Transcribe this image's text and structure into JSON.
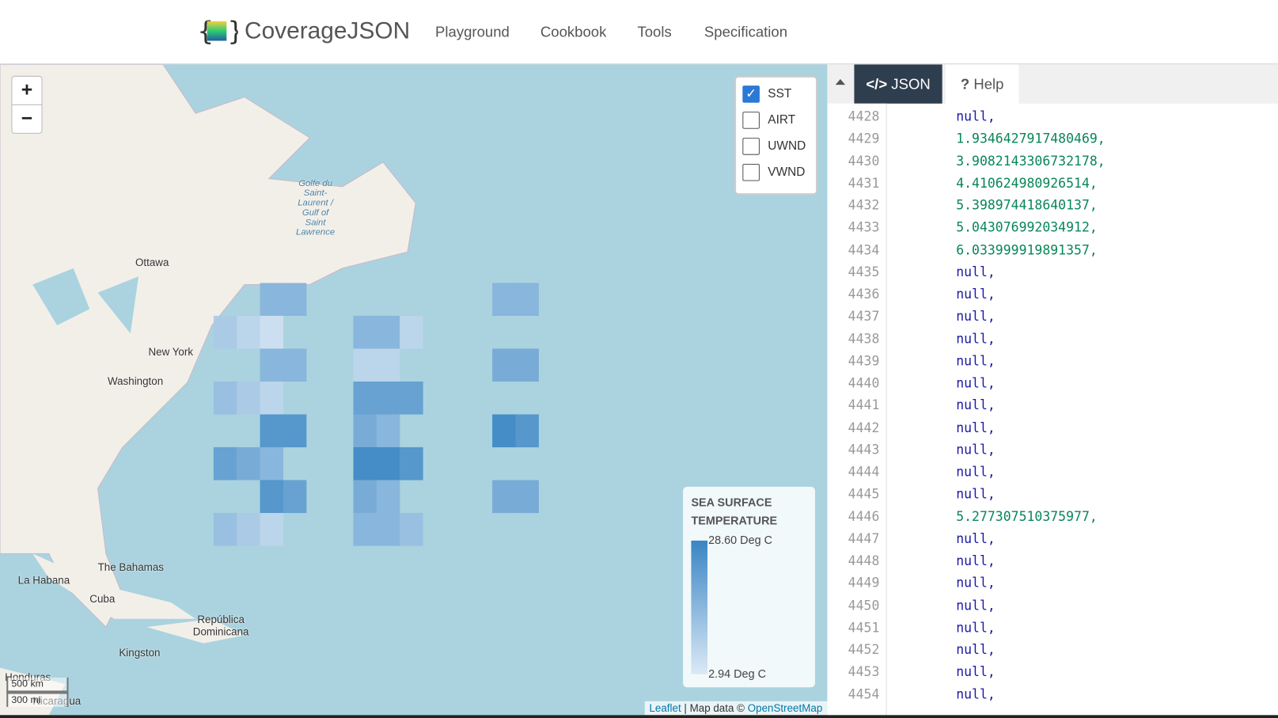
{
  "header": {
    "brand": "CoverageJSON",
    "nav": [
      "Playground",
      "Cookbook",
      "Tools",
      "Specification"
    ]
  },
  "map": {
    "zoom_in": "+",
    "zoom_out": "−",
    "layers": [
      {
        "label": "SST",
        "checked": true
      },
      {
        "label": "AIRT",
        "checked": false
      },
      {
        "label": "UWND",
        "checked": false
      },
      {
        "label": "VWND",
        "checked": false
      }
    ],
    "places": [
      "Ottawa",
      "New York",
      "Washington",
      "Golfe du Saint-Laurent / Gulf of Saint Lawrence",
      "The Bahamas",
      "La Habana",
      "Cuba",
      "República Dominicana",
      "Kingston",
      "Honduras",
      "Nicaragua"
    ],
    "legend": {
      "title": "SEA SURFACE TEMPERATURE",
      "max": "28.60 Deg C",
      "min": "2.94 Deg C"
    },
    "scale": [
      "500 km",
      "300 mi"
    ],
    "attribution": {
      "leaflet": "Leaflet",
      "separator": " | Map data © ",
      "osm": "OpenStreetMap"
    }
  },
  "editor": {
    "tabs": [
      "JSON",
      "Help"
    ],
    "lines": [
      {
        "number": 4428,
        "text": "null,"
      },
      {
        "number": 4429,
        "text": "1.9346427917480469,"
      },
      {
        "number": 4430,
        "text": "3.9082143306732178,"
      },
      {
        "number": 4431,
        "text": "4.410624980926514,"
      },
      {
        "number": 4432,
        "text": "5.398974418640137,"
      },
      {
        "number": 4433,
        "text": "5.043076992034912,"
      },
      {
        "number": 4434,
        "text": "6.033999919891357,"
      },
      {
        "number": 4435,
        "text": "null,"
      },
      {
        "number": 4436,
        "text": "null,"
      },
      {
        "number": 4437,
        "text": "null,"
      },
      {
        "number": 4438,
        "text": "null,"
      },
      {
        "number": 4439,
        "text": "null,"
      },
      {
        "number": 4440,
        "text": "null,"
      },
      {
        "number": 4441,
        "text": "null,"
      },
      {
        "number": 4442,
        "text": "null,"
      },
      {
        "number": 4443,
        "text": "null,"
      },
      {
        "number": 4444,
        "text": "null,"
      },
      {
        "number": 4445,
        "text": "null,"
      },
      {
        "number": 4446,
        "text": "5.277307510375977,"
      },
      {
        "number": 4447,
        "text": "null,"
      },
      {
        "number": 4448,
        "text": "null,"
      },
      {
        "number": 4449,
        "text": "null,"
      },
      {
        "number": 4450,
        "text": "null,"
      },
      {
        "number": 4451,
        "text": "null,"
      },
      {
        "number": 4452,
        "text": "null,"
      },
      {
        "number": 4453,
        "text": "null,"
      },
      {
        "number": 4454,
        "text": "null,"
      }
    ]
  }
}
